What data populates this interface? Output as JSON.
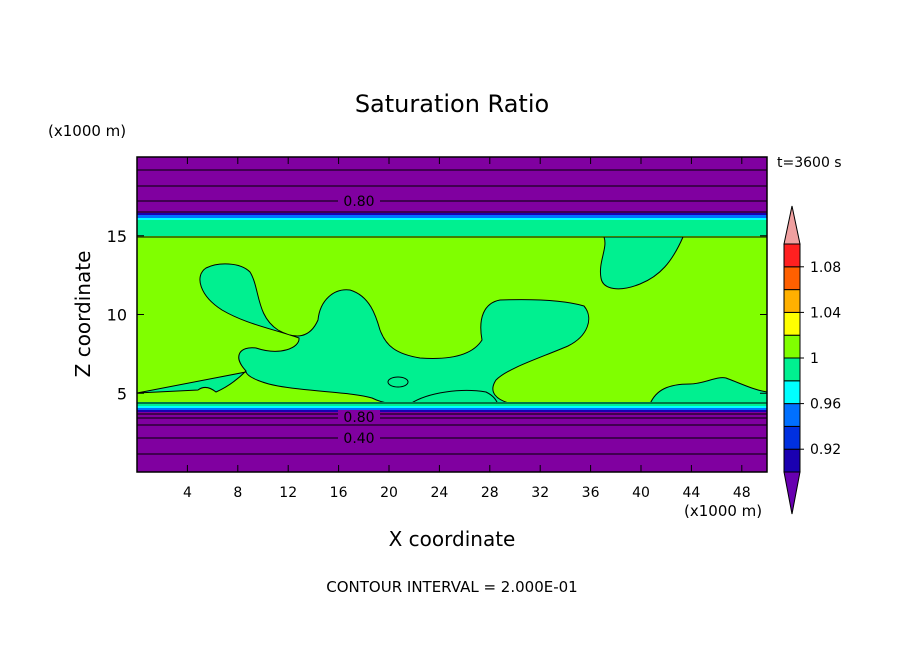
{
  "chart_data": {
    "type": "filled-contour",
    "title": "Saturation Ratio",
    "xlabel": "X coordinate",
    "ylabel": "Z coordinate",
    "x_units": "(x1000 m)",
    "y_units": "(x1000 m)",
    "time_label": "t=3600 s",
    "footer": "CONTOUR INTERVAL = 2.000E-01",
    "xlim": [
      0,
      50
    ],
    "ylim": [
      0,
      20
    ],
    "x_ticks": [
      4,
      8,
      12,
      16,
      20,
      24,
      28,
      32,
      36,
      40,
      44,
      48
    ],
    "y_ticks": [
      5,
      10,
      15
    ],
    "contour_labels": [
      {
        "text": "0.80",
        "x": 19,
        "y": 17.5
      },
      {
        "text": "0.80",
        "x": 19,
        "y": 3.5
      },
      {
        "text": "0.40",
        "x": 19,
        "y": 2.2
      }
    ],
    "layers": [
      {
        "name": "upper-dry",
        "z": [
          16.2,
          20
        ],
        "fill": "#8000a0"
      },
      {
        "name": "upper-moist",
        "z": [
          14.9,
          16.0
        ],
        "fill": "#00f090"
      },
      {
        "name": "middle-saturated",
        "z": [
          4.5,
          14.9
        ],
        "fill": "#80ff00"
      },
      {
        "name": "lower-moist",
        "z": [
          4.2,
          5.2
        ],
        "fill": "#00f090"
      },
      {
        "name": "lower-dry",
        "z": [
          0,
          4.0
        ],
        "fill": "#8000a0"
      }
    ],
    "colorbar": {
      "levels": [
        0.9,
        0.92,
        0.94,
        0.96,
        0.98,
        1.0,
        1.02,
        1.04,
        1.06,
        1.08,
        1.1
      ],
      "tick_labels": [
        "0.92",
        "0.96",
        "1",
        "1.04",
        "1.08"
      ],
      "colors": [
        "#6800b0",
        "#1a00b0",
        "#0030e0",
        "#0070ff",
        "#00ffff",
        "#00f090",
        "#80ff00",
        "#ffff00",
        "#ffb000",
        "#ff6000",
        "#ff2020",
        "#f0a0a0"
      ]
    }
  }
}
